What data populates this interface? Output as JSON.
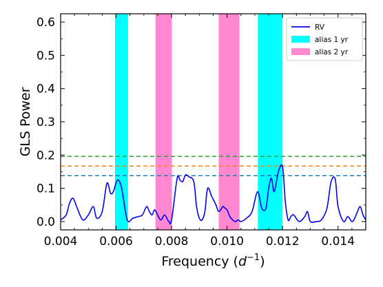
{
  "chart_data": {
    "type": "line",
    "xlabel": "Frequency",
    "xlabel_math": "d",
    "xlabel_exp": "−1",
    "ylabel": "GLS Power",
    "xlim": [
      0.004,
      0.015
    ],
    "ylim": [
      -0.025,
      0.625
    ],
    "x_ticks": [
      0.004,
      0.006,
      0.008,
      0.01,
      0.012,
      0.014
    ],
    "x_tick_labels": [
      "0.004",
      "0.006",
      "0.008",
      "0.010",
      "0.012",
      "0.014"
    ],
    "y_ticks": [
      0.0,
      0.1,
      0.2,
      0.3,
      0.4,
      0.5,
      0.6
    ],
    "y_tick_labels": [
      "0.0",
      "0.1",
      "0.2",
      "0.3",
      "0.4",
      "0.5",
      "0.6"
    ],
    "grid": false,
    "legend_placement": "top-right",
    "legend": [
      {
        "label": "RV",
        "kind": "line",
        "color": "#0000ee"
      },
      {
        "label": "alias 1 yr",
        "kind": "patch",
        "color": "#00ffff"
      },
      {
        "label": "alias 2 yr",
        "kind": "patch",
        "color": "#ff88d0"
      }
    ],
    "bands": [
      {
        "x0": 0.00596,
        "x1": 0.00643,
        "color": "#00ffff"
      },
      {
        "x0": 0.00742,
        "x1": 0.00801,
        "color": "#ff88d0"
      },
      {
        "x0": 0.0097,
        "x1": 0.01045,
        "color": "#ff88d0"
      },
      {
        "x0": 0.01111,
        "x1": 0.012,
        "color": "#00ffff"
      }
    ],
    "hlines": [
      {
        "y": 0.196,
        "color": "#2ca02c"
      },
      {
        "y": 0.167,
        "color": "#ff7f0e"
      },
      {
        "y": 0.138,
        "color": "#1f77b4"
      }
    ],
    "series": [
      {
        "color": "#0000ee",
        "x": [
          0.004,
          0.0042,
          0.00432,
          0.00445,
          0.0046,
          0.0048,
          0.005,
          0.00518,
          0.0053,
          0.0055,
          0.00567,
          0.0058,
          0.0059,
          0.00605,
          0.0062,
          0.0064,
          0.0066,
          0.0068,
          0.00695,
          0.0071,
          0.0072,
          0.0073,
          0.0074,
          0.0076,
          0.00775,
          0.0079,
          0.008,
          0.0082,
          0.0083,
          0.0084,
          0.0085,
          0.00862,
          0.0088,
          0.0089,
          0.009,
          0.0091,
          0.0092,
          0.0093,
          0.00945,
          0.0096,
          0.0097,
          0.00985,
          0.0099,
          0.01,
          0.0101,
          0.0102,
          0.0103,
          0.0104,
          0.0105,
          0.0107,
          0.0109,
          0.0111,
          0.01125,
          0.0114,
          0.0115,
          0.0116,
          0.0117,
          0.01185,
          0.012,
          0.0121,
          0.0122,
          0.0123,
          0.0124,
          0.0126,
          0.0128,
          0.0129,
          0.013,
          0.0132,
          0.0134,
          0.0136,
          0.01375,
          0.0139,
          0.014,
          0.0142,
          0.01435,
          0.0145,
          0.0146,
          0.0147,
          0.0148,
          0.0149,
          0.015
        ],
        "y": [
          0.005,
          0.02,
          0.055,
          0.07,
          0.04,
          0.005,
          0.02,
          0.045,
          0.01,
          0.03,
          0.115,
          0.085,
          0.09,
          0.125,
          0.1,
          0.005,
          0.01,
          0.015,
          0.02,
          0.045,
          0.03,
          0.02,
          0.035,
          0.005,
          0.02,
          0.0,
          0.005,
          0.13,
          0.125,
          0.12,
          0.14,
          0.135,
          0.12,
          0.045,
          0.01,
          0.005,
          0.03,
          0.1,
          0.075,
          0.05,
          0.03,
          0.045,
          0.042,
          0.035,
          0.015,
          0.005,
          0.0,
          0.005,
          0.0,
          0.01,
          0.03,
          0.09,
          0.04,
          0.04,
          0.1,
          0.13,
          0.09,
          0.15,
          0.165,
          0.06,
          0.005,
          0.015,
          0.02,
          0.0,
          0.015,
          0.03,
          0.0,
          0.0,
          0.005,
          0.04,
          0.12,
          0.127,
          0.045,
          0.0,
          0.015,
          0.0,
          0.01,
          0.03,
          0.045,
          0.02,
          0.005
        ]
      }
    ]
  }
}
